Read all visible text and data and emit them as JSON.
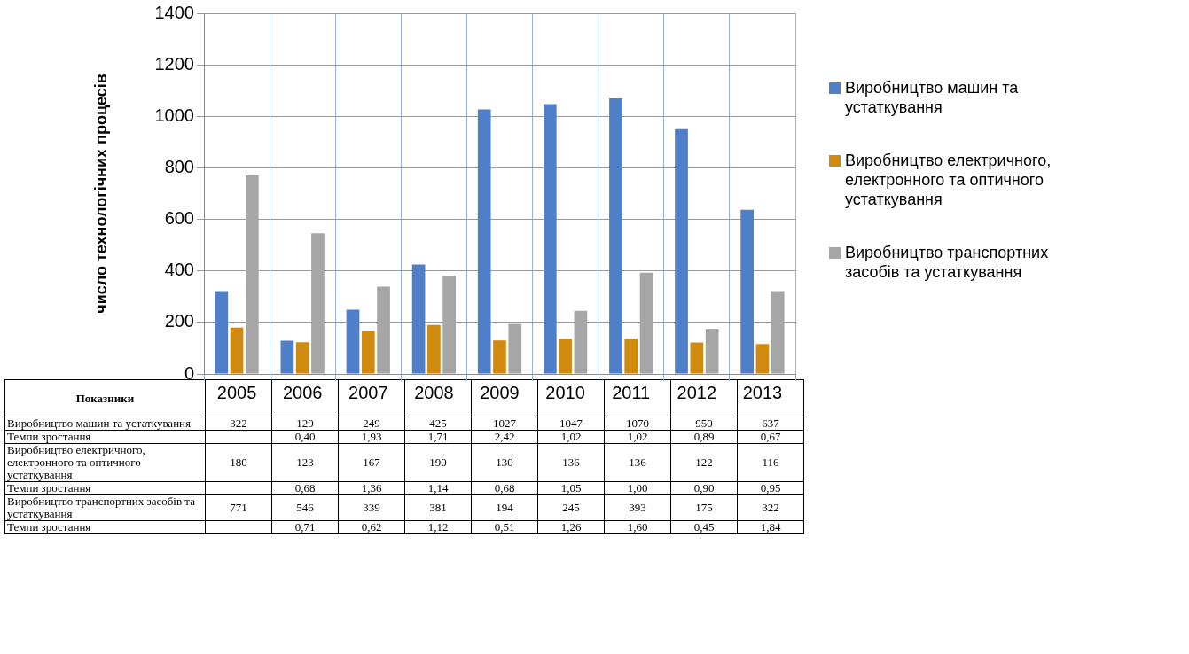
{
  "chart_data": {
    "type": "bar",
    "ylabel": "число технологічних процесів",
    "legend_title": "Показники",
    "categories": [
      "2005",
      "2006",
      "2007",
      "2008",
      "2009",
      "2010",
      "2011",
      "2012",
      "2013"
    ],
    "series": [
      {
        "name": "Виробництво машин та устаткування",
        "color": "#4f7fc8",
        "values": [
          322,
          129,
          249,
          425,
          1027,
          1047,
          1070,
          950,
          637
        ]
      },
      {
        "name": "Виробництво електричного, електронного та оптичного устаткування",
        "color": "#d08a10",
        "values": [
          180,
          123,
          167,
          190,
          130,
          136,
          136,
          122,
          116
        ]
      },
      {
        "name": "Виробництво транспортних засобів та устаткування",
        "color": "#a6a6a6",
        "values": [
          771,
          546,
          339,
          381,
          194,
          245,
          393,
          175,
          322
        ]
      }
    ],
    "ylim": [
      0,
      1400
    ],
    "yticks": [
      0,
      200,
      400,
      600,
      800,
      1000,
      1200,
      1400
    ],
    "grid": true,
    "legend": "right",
    "data_labels": true,
    "annotations": [
      "Темпи зростання",
      "0,40",
      "1,93",
      "1,71",
      "2,42",
      "1,02",
      "1,02",
      "0,89",
      "0,67",
      "Темпи зростання",
      "0,68",
      "1,36",
      "1,14",
      "0,68",
      "1,05",
      "1,00",
      "0,90",
      "0,95",
      "Темпи зростання",
      "0,71",
      "0,62",
      "1,12",
      "0,51",
      "1,26",
      "1,60",
      "0,45",
      "1,84"
    ]
  }
}
